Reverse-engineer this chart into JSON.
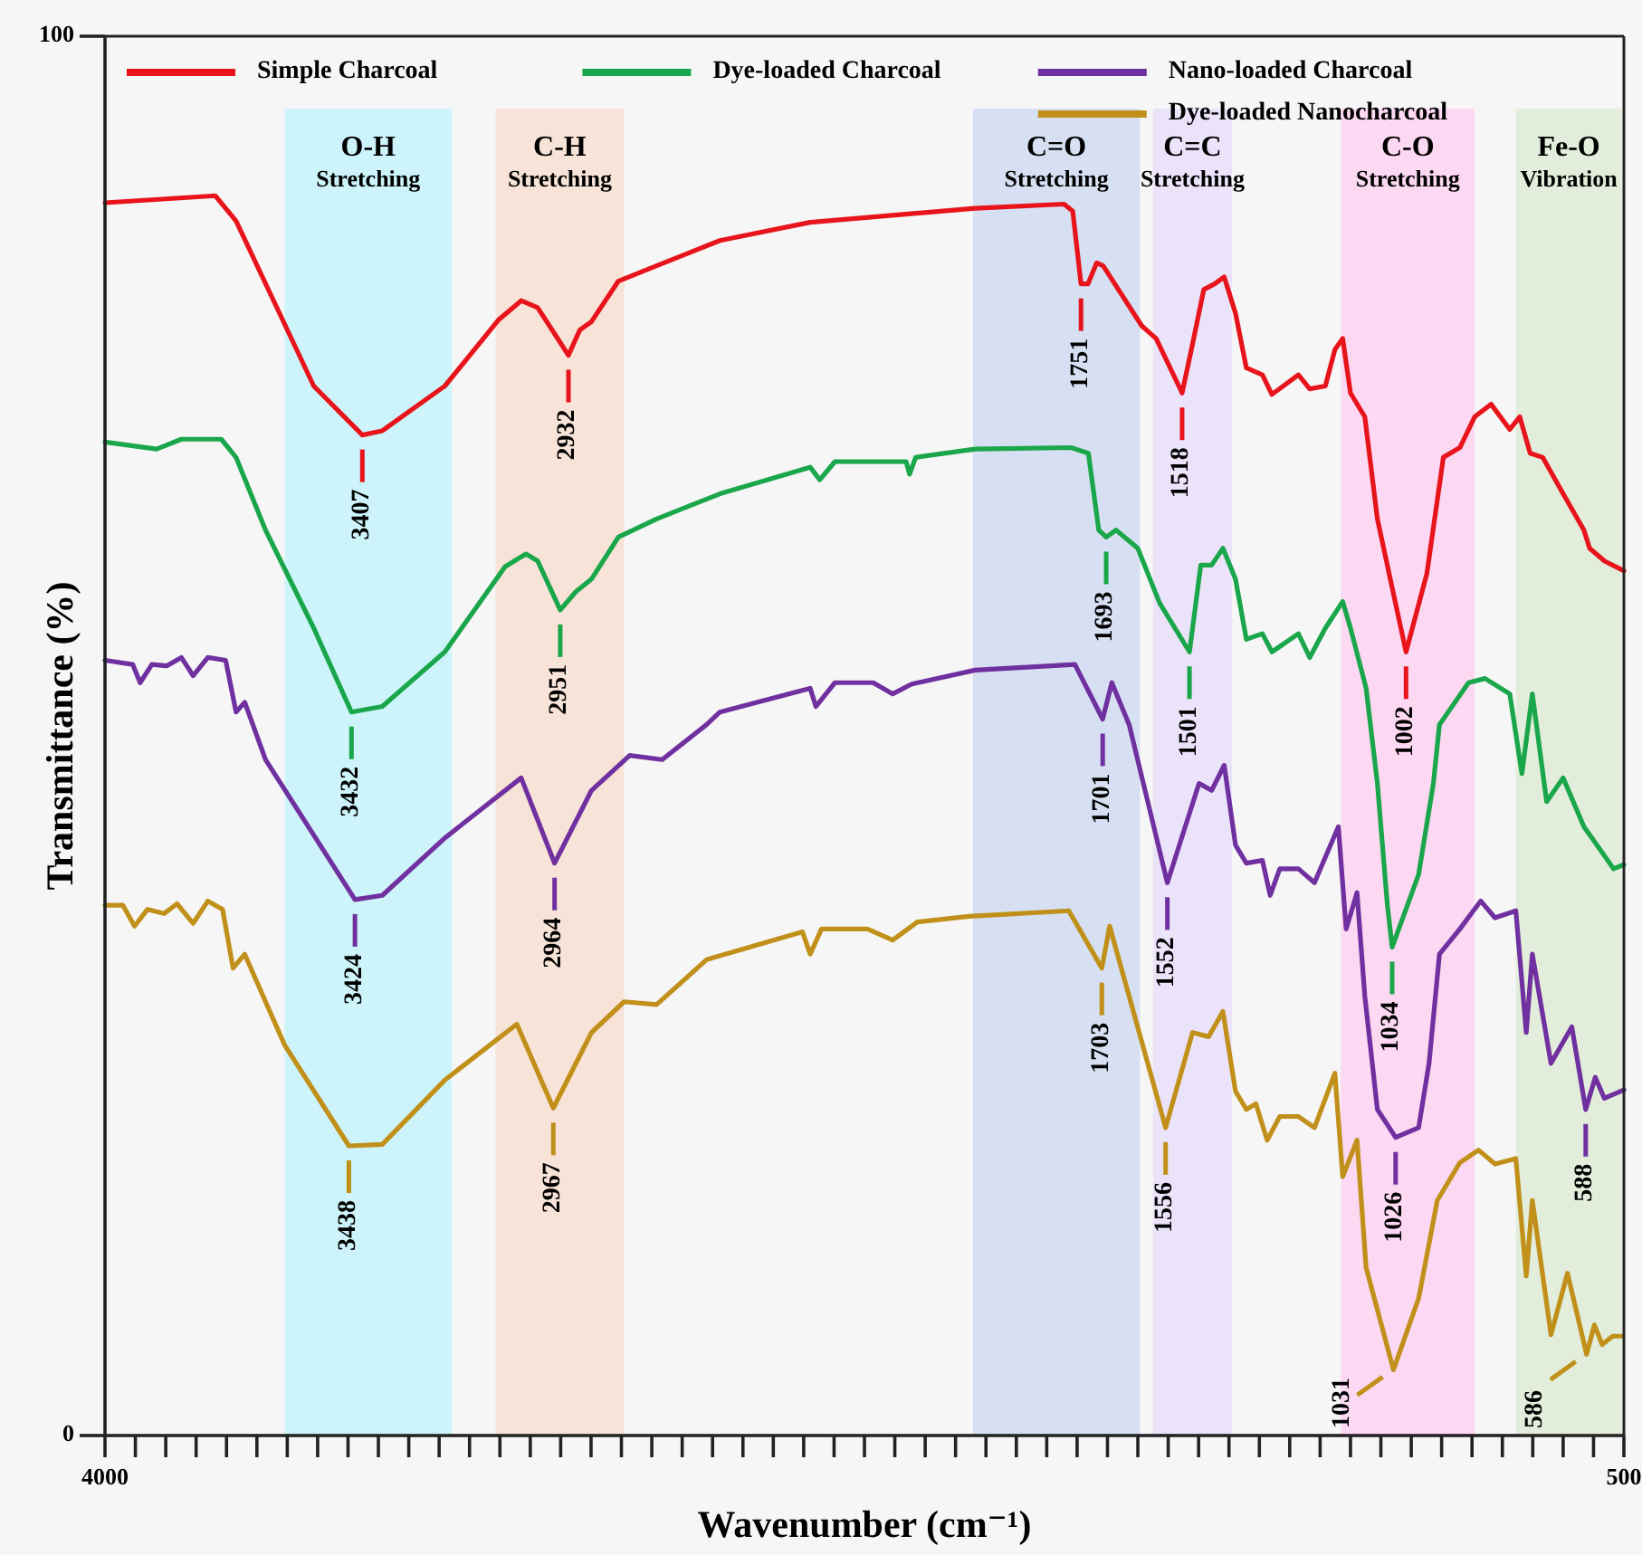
{
  "chart_data": {
    "type": "line",
    "xlabel": "Wavenumber (cm⁻¹)",
    "ylabel": "Transmittance (%)",
    "xlim": [
      4000,
      500
    ],
    "ylim": [
      0,
      100
    ],
    "xticks": [
      4000,
      {
        "value": 3930,
        "label": null
      },
      {
        "value": 3860,
        "label": null
      },
      {
        "value": 3790,
        "label": null
      },
      {
        "value": 3720,
        "label": null
      },
      {
        "value": 3650,
        "label": null
      },
      {
        "value": 3580,
        "label": null
      },
      {
        "value": 3510,
        "label": null
      },
      {
        "value": 3440,
        "label": null
      },
      {
        "value": 3370,
        "label": null
      },
      {
        "value": 3300,
        "label": null
      },
      {
        "value": 3230,
        "label": null
      },
      {
        "value": 3160,
        "label": null
      },
      {
        "value": 3090,
        "label": null
      },
      {
        "value": 3020,
        "label": null
      },
      {
        "value": 2950,
        "label": null
      },
      {
        "value": 2880,
        "label": null
      },
      {
        "value": 2810,
        "label": null
      },
      {
        "value": 2740,
        "label": null
      },
      {
        "value": 2670,
        "label": null
      },
      {
        "value": 2600,
        "label": null
      },
      {
        "value": 2530,
        "label": null
      },
      {
        "value": 2460,
        "label": null
      },
      {
        "value": 2390,
        "label": null
      },
      {
        "value": 2320,
        "label": null
      },
      {
        "value": 2250,
        "label": null
      },
      {
        "value": 2180,
        "label": null
      },
      {
        "value": 2110,
        "label": null
      },
      {
        "value": 2040,
        "label": null
      },
      {
        "value": 1970,
        "label": null
      },
      {
        "value": 1900,
        "label": null
      },
      {
        "value": 1830,
        "label": null
      },
      {
        "value": 1760,
        "label": null
      },
      {
        "value": 1690,
        "label": null
      },
      {
        "value": 1620,
        "label": null
      },
      {
        "value": 1550,
        "label": null
      },
      {
        "value": 1480,
        "label": null
      },
      {
        "value": 1410,
        "label": null
      },
      {
        "value": 1340,
        "label": null
      },
      {
        "value": 1270,
        "label": null
      },
      {
        "value": 1200,
        "label": null
      },
      {
        "value": 1130,
        "label": null
      },
      {
        "value": 1060,
        "label": null
      },
      {
        "value": 990,
        "label": null
      },
      {
        "value": 920,
        "label": null
      },
      {
        "value": 850,
        "label": null
      },
      {
        "value": 780,
        "label": null
      },
      {
        "value": 710,
        "label": null
      },
      {
        "value": 640,
        "label": null
      },
      {
        "value": 570,
        "label": null
      },
      500
    ],
    "yticks": [
      0,
      100
    ],
    "legend": "top",
    "marker": "none",
    "line_style": "solid",
    "bands": [
      {
        "axis": "x",
        "from": 3586,
        "to": 3201,
        "label": "O-H Stretching",
        "color": "#cdf4fa"
      },
      {
        "axis": "x",
        "from": 3100,
        "to": 2804,
        "label": "C-H Stretching",
        "color": "#f8e3d8"
      },
      {
        "axis": "x",
        "from": 2000,
        "to": 1615,
        "label": "C=O Stretching",
        "color": "#d6e0f2"
      },
      {
        "axis": "x",
        "from": 1585,
        "to": 1403,
        "label": "C=C Stretching",
        "color": "#ebe3fa"
      },
      {
        "axis": "x",
        "from": 1152,
        "to": 844,
        "label": "C-O Stretching",
        "color": "#fcd8f2"
      },
      {
        "axis": "x",
        "from": 749,
        "to": 505,
        "label": "Fe-O Vibration",
        "color": "#e2eedb"
      }
    ],
    "series": [
      {
        "name": "Simple Charcoal",
        "color": "#e8141b",
        "x": [
          4000,
          3746,
          3698,
          3610,
          3519,
          3407,
          3361,
          3217,
          3094,
          3041,
          3003,
          2932,
          2906,
          2879,
          2817,
          2729,
          2583,
          2375,
          1995,
          1790,
          1770,
          1751,
          1735,
          1715,
          1700,
          1611,
          1578,
          1518,
          1494,
          1468,
          1443,
          1421,
          1395,
          1370,
          1333,
          1311,
          1250,
          1224,
          1188,
          1166,
          1148,
          1130,
          1097,
          1068,
          1032,
          1002,
          954,
          916,
          878,
          844,
          806,
          763,
          740,
          716,
          687,
          640,
          592,
          579,
          545,
          500
        ],
        "values": [
          88.1,
          88.6,
          86.8,
          81.0,
          75.0,
          71.5,
          71.8,
          75.0,
          79.7,
          81.1,
          80.6,
          77.2,
          79.0,
          79.6,
          82.5,
          83.6,
          85.4,
          86.7,
          87.7,
          88.0,
          87.5,
          82.3,
          82.3,
          83.8,
          83.6,
          79.3,
          78.4,
          74.5,
          78.0,
          81.9,
          82.3,
          82.8,
          80.2,
          76.3,
          75.8,
          74.4,
          75.8,
          74.8,
          75.0,
          77.6,
          78.4,
          74.5,
          72.8,
          65.5,
          60.3,
          56.0,
          61.6,
          69.9,
          70.6,
          72.8,
          73.7,
          71.9,
          72.8,
          70.2,
          69.9,
          67.3,
          64.7,
          63.4,
          62.5,
          61.8
        ]
      },
      {
        "name": "Dye-loaded Charcoal",
        "color": "#1aa64a",
        "x": [
          4000,
          3881,
          3824,
          3732,
          3698,
          3630,
          3519,
          3432,
          3361,
          3217,
          3078,
          3030,
          3003,
          2951,
          2915,
          2879,
          2817,
          2729,
          2583,
          2375,
          2353,
          2318,
          2154,
          2146,
          2132,
          1995,
          1774,
          1734,
          1710,
          1693,
          1670,
          1620,
          1570,
          1501,
          1475,
          1450,
          1424,
          1395,
          1370,
          1333,
          1311,
          1250,
          1224,
          1188,
          1148,
          1130,
          1094,
          1068,
          1045,
          1034,
          973,
          939,
          925,
          858,
          820,
          763,
          735,
          711,
          678,
          640,
          592,
          553,
          524,
          500
        ],
        "values": [
          71.0,
          70.5,
          71.2,
          71.2,
          69.9,
          64.7,
          57.7,
          51.7,
          52.1,
          56.0,
          62.1,
          63.0,
          62.5,
          59.0,
          60.3,
          61.2,
          64.2,
          65.5,
          67.3,
          69.2,
          68.3,
          69.6,
          69.6,
          68.7,
          69.9,
          70.5,
          70.6,
          70.2,
          64.7,
          64.2,
          64.7,
          63.4,
          59.5,
          56.0,
          62.2,
          62.2,
          63.4,
          61.2,
          56.9,
          57.3,
          56.0,
          57.3,
          55.6,
          57.7,
          59.6,
          57.7,
          53.4,
          46.6,
          37.9,
          34.9,
          40.1,
          46.6,
          50.8,
          53.8,
          54.1,
          53.0,
          47.3,
          53.0,
          45.3,
          47.0,
          43.5,
          41.8,
          40.5,
          40.8
        ]
      },
      {
        "name": "Nano-loaded Charcoal",
        "color": "#7030a0",
        "x": [
          4000,
          3936,
          3919,
          3892,
          3858,
          3824,
          3797,
          3763,
          3722,
          3698,
          3678,
          3630,
          3424,
          3361,
          3217,
          3041,
          2964,
          2879,
          2791,
          2716,
          2614,
          2583,
          2375,
          2362,
          2318,
          2230,
          2185,
          2141,
          1995,
          1765,
          1701,
          1680,
          1640,
          1552,
          1479,
          1450,
          1421,
          1395,
          1370,
          1333,
          1315,
          1293,
          1250,
          1213,
          1158,
          1140,
          1115,
          1097,
          1068,
          1026,
          973,
          949,
          925,
          878,
          830,
          797,
          749,
          725,
          711,
          668,
          620,
          588,
          566,
          545,
          500
        ],
        "values": [
          55.4,
          55.1,
          53.8,
          55.1,
          55.0,
          55.6,
          54.3,
          55.6,
          55.4,
          51.7,
          52.4,
          48.3,
          38.3,
          38.6,
          42.7,
          47.0,
          40.9,
          46.1,
          48.6,
          48.3,
          50.8,
          51.7,
          53.4,
          52.1,
          53.8,
          53.8,
          53.0,
          53.7,
          54.7,
          55.1,
          51.2,
          53.8,
          50.8,
          39.5,
          46.6,
          46.1,
          47.9,
          42.2,
          40.9,
          41.1,
          38.6,
          40.5,
          40.5,
          39.5,
          43.5,
          36.2,
          38.8,
          31.4,
          23.3,
          21.3,
          22.0,
          26.6,
          34.4,
          36.2,
          38.2,
          37.0,
          37.5,
          28.8,
          34.4,
          26.6,
          29.2,
          23.3,
          25.6,
          24.1,
          24.7
        ]
      },
      {
        "name": "Dye-loaded Nanocharcoal",
        "color": "#c0901a",
        "x": [
          4000,
          3959,
          3932,
          3902,
          3864,
          3834,
          3797,
          3763,
          3729,
          3705,
          3678,
          3630,
          3586,
          3438,
          3361,
          3217,
          3051,
          2967,
          2879,
          2804,
          2729,
          2614,
          2393,
          2375,
          2349,
          2243,
          2185,
          2128,
          2009,
          1779,
          1703,
          1685,
          1556,
          1494,
          1457,
          1424,
          1395,
          1370,
          1348,
          1322,
          1293,
          1250,
          1213,
          1166,
          1148,
          1115,
          1094,
          1031,
          973,
          930,
          878,
          835,
          797,
          749,
          725,
          711,
          668,
          630,
          586,
          568,
          550,
          526,
          505
        ],
        "values": [
          37.9,
          37.9,
          36.4,
          37.6,
          37.3,
          38.0,
          36.6,
          38.2,
          37.6,
          33.4,
          34.4,
          31.0,
          27.9,
          20.7,
          20.8,
          25.4,
          29.4,
          23.4,
          28.8,
          31.0,
          30.8,
          34.0,
          36.0,
          34.4,
          36.2,
          36.2,
          35.4,
          36.7,
          37.1,
          37.5,
          33.4,
          36.4,
          22.0,
          28.8,
          28.5,
          30.3,
          24.6,
          23.3,
          23.7,
          21.1,
          22.8,
          22.8,
          22.0,
          25.9,
          18.5,
          21.1,
          12.0,
          4.7,
          9.8,
          16.8,
          19.5,
          20.4,
          19.4,
          19.8,
          11.4,
          16.8,
          7.2,
          11.6,
          5.8,
          7.9,
          6.5,
          7.1,
          7.1
        ]
      }
    ],
    "annotations": [
      {
        "text": "3407",
        "x": 3407,
        "y": 71.5
      },
      {
        "text": "2932",
        "x": 2932,
        "y": 77.2
      },
      {
        "text": "1751",
        "x": 1751,
        "y": 82.3
      },
      {
        "text": "1518",
        "x": 1518,
        "y": 74.5
      },
      {
        "text": "1002",
        "x": 1002,
        "y": 56.0
      },
      {
        "text": "3432",
        "x": 3432,
        "y": 51.7
      },
      {
        "text": "2951",
        "x": 2951,
        "y": 59.0
      },
      {
        "text": "1693",
        "x": 1693,
        "y": 64.2
      },
      {
        "text": "1501",
        "x": 1501,
        "y": 56.0
      },
      {
        "text": "1034",
        "x": 1034,
        "y": 34.9
      },
      {
        "text": "3424",
        "x": 3424,
        "y": 38.3
      },
      {
        "text": "2964",
        "x": 2964,
        "y": 40.9
      },
      {
        "text": "1701",
        "x": 1701,
        "y": 51.2
      },
      {
        "text": "1552",
        "x": 1552,
        "y": 39.5
      },
      {
        "text": "1026",
        "x": 1026,
        "y": 21.3
      },
      {
        "text": "588",
        "x": 588,
        "y": 23.3
      },
      {
        "text": "3438",
        "x": 3438,
        "y": 20.7
      },
      {
        "text": "2967",
        "x": 2967,
        "y": 23.4
      },
      {
        "text": "1703",
        "x": 1703,
        "y": 33.4
      },
      {
        "text": "1556",
        "x": 1556,
        "y": 22.0
      },
      {
        "text": "1031",
        "x": 1031,
        "y": 4.7
      },
      {
        "text": "586",
        "x": 586,
        "y": 5.8
      }
    ]
  }
}
